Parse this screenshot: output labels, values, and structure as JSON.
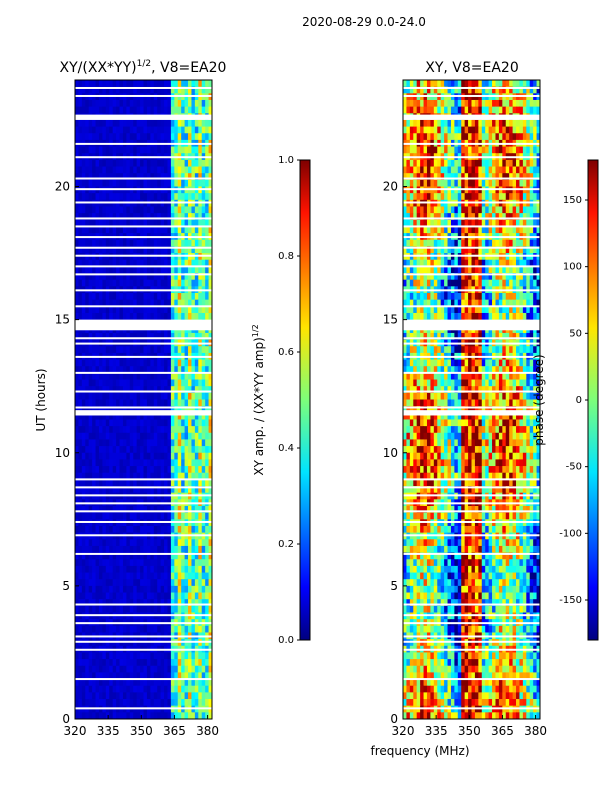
{
  "figure": {
    "suptitle": "2020-08-29 0.0-24.0",
    "xlabel": "frequency (MHz)"
  },
  "chart_data": [
    {
      "type": "heatmap",
      "title": "XY/(XX*YY)",
      "title_exponent": "1/2",
      "title_suffix": ", V8=EA20",
      "xlabel": "frequency (MHz)",
      "ylabel": "UT (hours)",
      "xlim": [
        320,
        382
      ],
      "ylim": [
        0,
        24
      ],
      "xticks": [
        320,
        335,
        350,
        365,
        380
      ],
      "yticks": [
        0,
        5,
        10,
        15,
        20
      ],
      "colorbar": {
        "label": "XY amp. / (XX*YY amp)",
        "label_exponent": "1/2",
        "range": [
          0.0,
          1.0
        ],
        "ticks": [
          "0.0",
          "0.2",
          "0.4",
          "0.6",
          "0.8",
          "1.0"
        ],
        "colormap": "jet"
      },
      "description_values": {
        "low_band_mhz": [
          320,
          363
        ],
        "low_band_level": 0.05,
        "high_band_mhz": [
          363,
          382
        ],
        "high_band_level": 0.35
      }
    },
    {
      "type": "heatmap",
      "title": "XY, V8=EA20",
      "xlabel": "frequency (MHz)",
      "ylabel": "",
      "xlim": [
        320,
        382
      ],
      "ylim": [
        0,
        24
      ],
      "xticks": [
        320,
        335,
        350,
        365,
        380
      ],
      "yticks": [
        0,
        5,
        10,
        15,
        20
      ],
      "colorbar": {
        "label": "phase (degree)",
        "range": [
          -180,
          180
        ],
        "ticks": [
          "-150",
          "-100",
          "-50",
          "0",
          "50",
          "100",
          "150"
        ],
        "colormap": "jet"
      }
    }
  ],
  "gap_rows_hours": [
    0.4,
    1.5,
    2.6,
    2.9,
    3.1,
    3.6,
    3.9,
    4.3,
    6.2,
    6.9,
    7.4,
    7.8,
    8.1,
    8.4,
    8.7,
    9.0,
    11.5,
    11.7,
    12.3,
    13.0,
    13.6,
    14.1,
    14.3,
    14.7,
    14.9,
    15.5,
    16.1,
    16.7,
    17.0,
    17.4,
    17.7,
    18.1,
    18.5,
    18.8,
    19.4,
    19.9,
    20.3,
    21.1,
    21.6,
    22.6,
    23.4,
    23.7
  ],
  "thick_gap_hours": [
    [
      14.6,
      15.0
    ],
    [
      22.5,
      22.7
    ],
    [
      11.4,
      11.6
    ]
  ]
}
